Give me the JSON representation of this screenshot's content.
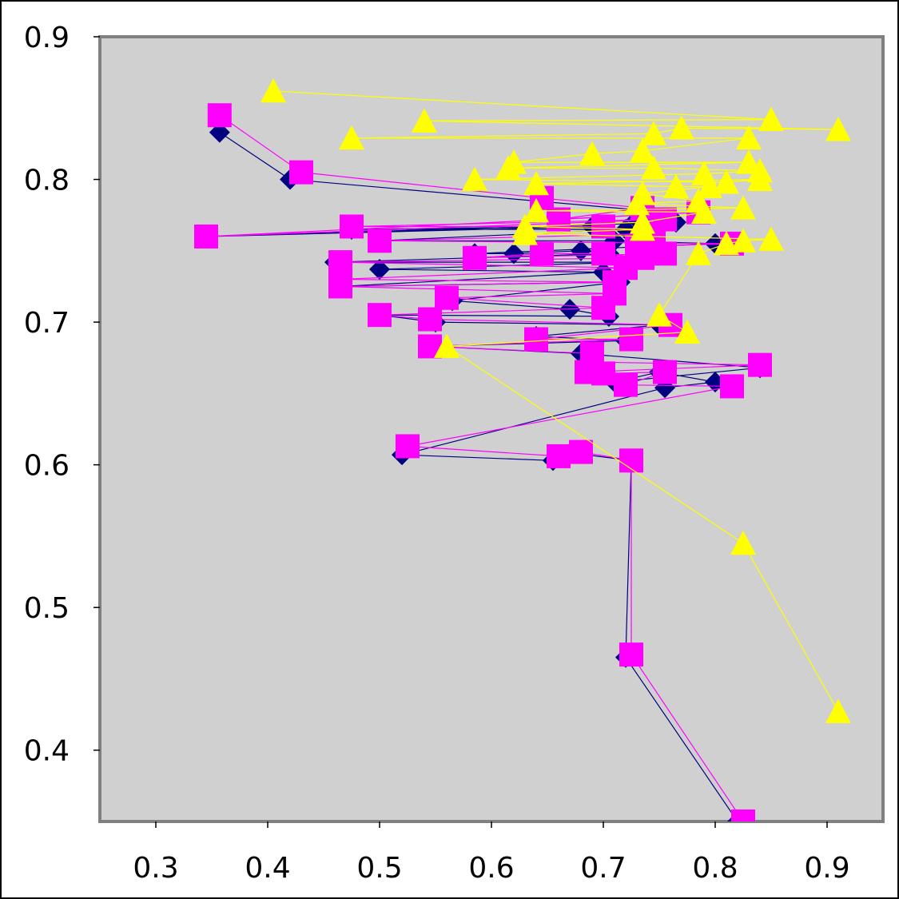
{
  "chart_data": {
    "type": "scatter",
    "title": "",
    "xlabel": "",
    "ylabel": "",
    "xlim": [
      0.25,
      0.95
    ],
    "ylim": [
      0.35,
      0.9
    ],
    "xticks": [
      0.3,
      0.4,
      0.5,
      0.6,
      0.7,
      0.8,
      0.9
    ],
    "xtick_labels": [
      "0.3",
      "0.4",
      "0.5",
      "0.6",
      "0.7",
      "0.8",
      "0.9"
    ],
    "yticks": [
      0.4,
      0.5,
      0.6,
      0.7,
      0.8,
      0.9
    ],
    "ytick_labels": [
      "0.4",
      "0.5",
      "0.6",
      "0.7",
      "0.8",
      "0.9"
    ],
    "grid": false,
    "legend": "none",
    "plot_background": "#d0d0d0",
    "page_background": "#ffffff",
    "series": [
      {
        "marker": "diamond",
        "color": "#000080",
        "points": [
          [
            0.357,
            0.833
          ],
          [
            0.42,
            0.8
          ],
          [
            0.74,
            0.778
          ],
          [
            0.73,
            0.772
          ],
          [
            0.765,
            0.77
          ],
          [
            0.345,
            0.76
          ],
          [
            0.69,
            0.767
          ],
          [
            0.475,
            0.765
          ],
          [
            0.72,
            0.765
          ],
          [
            0.5,
            0.757
          ],
          [
            0.71,
            0.757
          ],
          [
            0.8,
            0.755
          ],
          [
            0.585,
            0.748
          ],
          [
            0.62,
            0.748
          ],
          [
            0.68,
            0.75
          ],
          [
            0.705,
            0.748
          ],
          [
            0.46,
            0.742
          ],
          [
            0.725,
            0.742
          ],
          [
            0.5,
            0.737
          ],
          [
            0.7,
            0.735
          ],
          [
            0.465,
            0.725
          ],
          [
            0.715,
            0.728
          ],
          [
            0.565,
            0.715
          ],
          [
            0.67,
            0.709
          ],
          [
            0.705,
            0.704
          ],
          [
            0.5,
            0.705
          ],
          [
            0.55,
            0.7
          ],
          [
            0.75,
            0.698
          ],
          [
            0.64,
            0.69
          ],
          [
            0.72,
            0.687
          ],
          [
            0.545,
            0.683
          ],
          [
            0.68,
            0.678
          ],
          [
            0.84,
            0.668
          ],
          [
            0.71,
            0.658
          ],
          [
            0.75,
            0.665
          ],
          [
            0.8,
            0.658
          ],
          [
            0.755,
            0.654
          ],
          [
            0.52,
            0.607
          ],
          [
            0.655,
            0.603
          ],
          [
            0.675,
            0.608
          ],
          [
            0.725,
            0.603
          ],
          [
            0.72,
            0.465
          ],
          [
            0.82,
            0.35
          ]
        ]
      },
      {
        "marker": "square",
        "color": "#ff00ff",
        "points": [
          [
            0.357,
            0.845
          ],
          [
            0.43,
            0.805
          ],
          [
            0.645,
            0.787
          ],
          [
            0.735,
            0.78
          ],
          [
            0.66,
            0.772
          ],
          [
            0.785,
            0.777
          ],
          [
            0.345,
            0.76
          ],
          [
            0.755,
            0.772
          ],
          [
            0.475,
            0.767
          ],
          [
            0.7,
            0.767
          ],
          [
            0.745,
            0.762
          ],
          [
            0.5,
            0.757
          ],
          [
            0.815,
            0.755
          ],
          [
            0.73,
            0.753
          ],
          [
            0.755,
            0.748
          ],
          [
            0.585,
            0.745
          ],
          [
            0.645,
            0.748
          ],
          [
            0.7,
            0.748
          ],
          [
            0.735,
            0.745
          ],
          [
            0.465,
            0.742
          ],
          [
            0.72,
            0.738
          ],
          [
            0.465,
            0.73
          ],
          [
            0.71,
            0.728
          ],
          [
            0.465,
            0.725
          ],
          [
            0.71,
            0.72
          ],
          [
            0.56,
            0.717
          ],
          [
            0.7,
            0.71
          ],
          [
            0.5,
            0.705
          ],
          [
            0.545,
            0.702
          ],
          [
            0.76,
            0.698
          ],
          [
            0.64,
            0.688
          ],
          [
            0.725,
            0.688
          ],
          [
            0.545,
            0.683
          ],
          [
            0.69,
            0.678
          ],
          [
            0.69,
            0.672
          ],
          [
            0.84,
            0.67
          ],
          [
            0.685,
            0.665
          ],
          [
            0.7,
            0.664
          ],
          [
            0.755,
            0.665
          ],
          [
            0.72,
            0.656
          ],
          [
            0.815,
            0.655
          ],
          [
            0.525,
            0.613
          ],
          [
            0.66,
            0.606
          ],
          [
            0.68,
            0.609
          ],
          [
            0.725,
            0.603
          ],
          [
            0.725,
            0.467
          ],
          [
            0.825,
            0.35
          ]
        ]
      },
      {
        "marker": "triangle",
        "color": "#ffff00",
        "points": [
          [
            0.405,
            0.862
          ],
          [
            0.85,
            0.842
          ],
          [
            0.54,
            0.841
          ],
          [
            0.91,
            0.835
          ],
          [
            0.77,
            0.836
          ],
          [
            0.745,
            0.832
          ],
          [
            0.475,
            0.829
          ],
          [
            0.83,
            0.829
          ],
          [
            0.735,
            0.82
          ],
          [
            0.69,
            0.818
          ],
          [
            0.62,
            0.812
          ],
          [
            0.83,
            0.812
          ],
          [
            0.615,
            0.808
          ],
          [
            0.745,
            0.808
          ],
          [
            0.84,
            0.806
          ],
          [
            0.79,
            0.804
          ],
          [
            0.585,
            0.8
          ],
          [
            0.81,
            0.798
          ],
          [
            0.84,
            0.8
          ],
          [
            0.64,
            0.797
          ],
          [
            0.765,
            0.795
          ],
          [
            0.795,
            0.795
          ],
          [
            0.735,
            0.79
          ],
          [
            0.785,
            0.785
          ],
          [
            0.73,
            0.783
          ],
          [
            0.825,
            0.78
          ],
          [
            0.64,
            0.778
          ],
          [
            0.79,
            0.777
          ],
          [
            0.735,
            0.77
          ],
          [
            0.63,
            0.767
          ],
          [
            0.735,
            0.765
          ],
          [
            0.63,
            0.762
          ],
          [
            0.85,
            0.758
          ],
          [
            0.825,
            0.757
          ],
          [
            0.81,
            0.755
          ],
          [
            0.785,
            0.748
          ],
          [
            0.75,
            0.705
          ],
          [
            0.775,
            0.693
          ],
          [
            0.56,
            0.683
          ],
          [
            0.825,
            0.545
          ],
          [
            0.91,
            0.427
          ]
        ]
      }
    ]
  }
}
